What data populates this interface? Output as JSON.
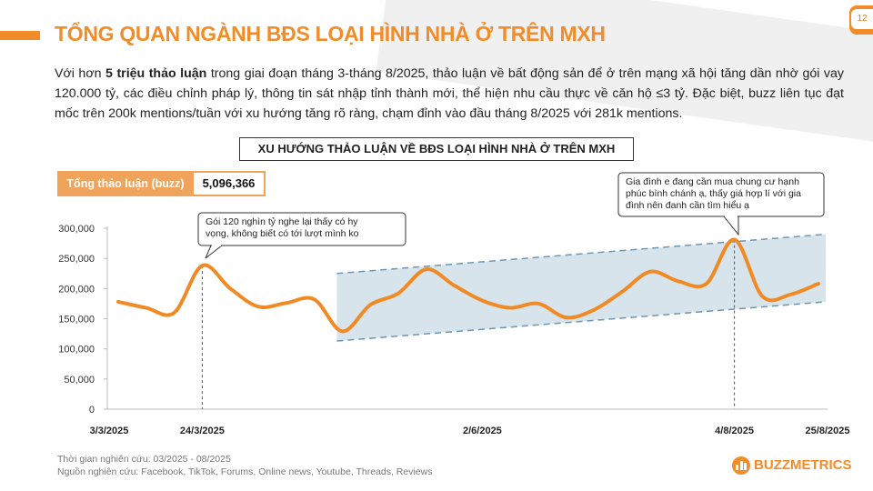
{
  "page": {
    "number": "12",
    "title": "TỔNG QUAN NGÀNH BĐS LOẠI HÌNH NHÀ Ở TRÊN MXH",
    "intro_prefix": "Với hơn ",
    "intro_bold": "5 triệu thảo luận",
    "intro_rest": " trong giai đoạn tháng 3-tháng 8/2025, thảo luận về bất động sản để ở trên mạng xã hội tăng dần nhờ gói vay 120.000 tỷ, các điều chỉnh pháp lý, thông tin sát nhập tỉnh thành mới, thể hiện nhu cầu thực về căn hộ ≤3 tỷ. Đặc biệt, buzz liên tục đạt mốc trên 200k mentions/tuần với xu hướng tăng rõ ràng, chạm đỉnh vào đầu tháng 8/2025 với 281k mentions."
  },
  "kpi": {
    "label": "Tổng thảo luận (buzz)",
    "value": "5,096,366"
  },
  "footer": {
    "period": "Thời gian nghiên cứu: 03/2025 - 08/2025",
    "sources": "Nguồn nghiên cứu: Facebook, TikTok, Forums, Online news, Youtube, Threads, Reviews"
  },
  "logo": {
    "text": "BUZZMETRICS"
  },
  "colors": {
    "accent": "#f28c28",
    "line": "#f08a24",
    "band": "#d3e1ea",
    "band_edge": "#6e95b3"
  },
  "chart_data": {
    "type": "line",
    "title": "XU HƯỚNG THẢO LUẬN VỀ BĐS LOẠI HÌNH NHÀ Ở TRÊN MXH",
    "ylim": [
      0,
      300000
    ],
    "yticks": [
      0,
      50000,
      100000,
      150000,
      200000,
      250000,
      300000
    ],
    "ytick_labels": [
      "0",
      "50,000",
      "100,000",
      "150,000",
      "200,000",
      "250,000",
      "300,000"
    ],
    "xtick_labels": [
      "3/3/2025",
      "24/3/2025",
      "2/6/2025",
      "4/8/2025",
      "25/8/2025"
    ],
    "xtick_index": [
      0,
      3,
      13,
      22,
      25
    ],
    "grid": false,
    "series": [
      {
        "values": [
          178000,
          168000,
          160000,
          238000,
          200000,
          170000,
          176000,
          182000,
          129000,
          173000,
          192000,
          232000,
          205000,
          180000,
          168000,
          175000,
          152000,
          165000,
          195000,
          228000,
          212000,
          208000,
          281000,
          187000,
          190000,
          208000
        ]
      }
    ],
    "trend_band": {
      "start_index": 8,
      "end_index": 25,
      "upper": [
        225000,
        290000
      ],
      "lower": [
        113000,
        178000
      ]
    },
    "markers": [
      3,
      22
    ],
    "annotations": [
      {
        "index": 3,
        "text": "Gói 120 nghìn tỷ nghe lại thấy có hy vọng, không biết có tới lượt mình ko"
      },
      {
        "index": 22,
        "text": "Gia đình e đang cần mua chung cư hạnh phúc bình chánh ạ, thấy giá hợp lí với gia đình nên đanh cần tìm hiểu ạ"
      }
    ]
  }
}
